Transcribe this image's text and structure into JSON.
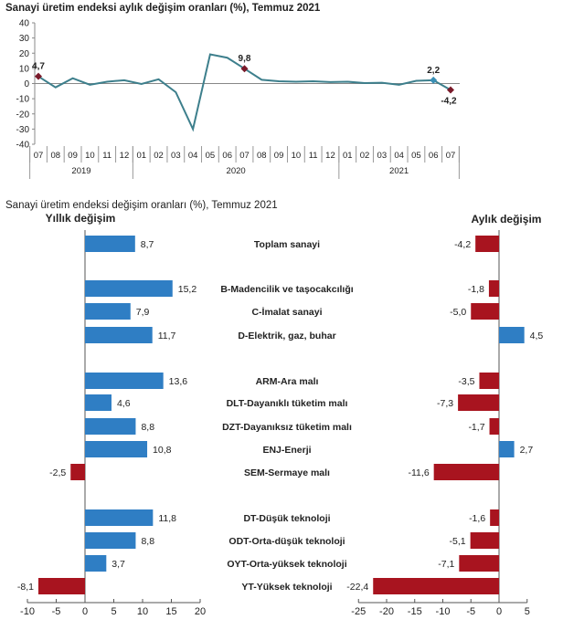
{
  "colors": {
    "line": "#3d7f8c",
    "blue": "#2f7ec4",
    "red": "#a8141f",
    "marker_red": "#7a1a2a",
    "marker_blue": "#3a8fb5"
  },
  "chart_data": [
    {
      "type": "line",
      "title": "Sanayi üretim endeksi aylık değişim oranları (%), Temmuz 2021",
      "x": [
        "07",
        "08",
        "09",
        "10",
        "11",
        "12",
        "01",
        "02",
        "03",
        "04",
        "05",
        "06",
        "07",
        "08",
        "09",
        "10",
        "11",
        "12",
        "01",
        "02",
        "03",
        "04",
        "05",
        "06",
        "07"
      ],
      "years": [
        {
          "label": "2019",
          "from": 0,
          "to": 5
        },
        {
          "label": "2020",
          "from": 6,
          "to": 17
        },
        {
          "label": "2021",
          "from": 18,
          "to": 24
        }
      ],
      "values": [
        4.7,
        -2.5,
        3.5,
        -0.8,
        1.2,
        2.2,
        -0.3,
        2.8,
        -5.7,
        -30.0,
        19.2,
        17.0,
        9.8,
        2.5,
        1.5,
        1.2,
        1.5,
        1.0,
        1.2,
        0.3,
        0.5,
        -0.8,
        1.8,
        2.2,
        -4.2
      ],
      "labeled_points": [
        {
          "index": 0,
          "label": "4,7",
          "color": "red"
        },
        {
          "index": 12,
          "label": "9,8",
          "color": "red"
        },
        {
          "index": 23,
          "label": "2,2",
          "color": "blue"
        },
        {
          "index": 24,
          "label": "-4,2",
          "color": "red"
        }
      ],
      "ylim": [
        -40,
        40
      ],
      "yticks": [
        "40",
        "30",
        "20",
        "10",
        "0",
        "-10",
        "-20",
        "-30",
        "-40"
      ],
      "grid": false
    },
    {
      "type": "bar",
      "orientation": "horizontal",
      "title": "Sanayi üretim endeksi değişim oranları (%), Temmuz 2021",
      "categories": [
        "Toplam sanayi",
        "B-Madencilik ve taşocakcılığı",
        "C-İmalat sanayi",
        "D-Elektrik, gaz, buhar",
        "ARM-Ara malı",
        "DLT-Dayanıklı tüketim malı",
        "DZT-Dayanıksız tüketim malı",
        "ENJ-Enerji",
        "SEM-Sermaye malı",
        "DT-Düşük teknoloji",
        "ODT-Orta-düşük teknoloji",
        "OYT-Orta-yüksek teknoloji",
        "YT-Yüksek teknoloji"
      ],
      "series": [
        {
          "name": "Yıllık değişim",
          "values": [
            8.7,
            15.2,
            7.9,
            11.7,
            13.6,
            4.6,
            8.8,
            10.8,
            -2.5,
            11.8,
            8.8,
            3.7,
            -8.1
          ],
          "labels": [
            "8,7",
            "15,2",
            "7,9",
            "11,7",
            "13,6",
            "4,6",
            "8,8",
            "10,8",
            "-2,5",
            "11,8",
            "8,8",
            "3,7",
            "-8,1"
          ],
          "xlim": [
            -10,
            20
          ],
          "xticks": [
            "-10",
            "-5",
            "0",
            "5",
            "10",
            "15",
            "20"
          ]
        },
        {
          "name": "Aylık değişim",
          "values": [
            -4.2,
            -1.8,
            -5.0,
            4.5,
            -3.5,
            -7.3,
            -1.7,
            2.7,
            -11.6,
            -1.6,
            -5.1,
            -7.1,
            -22.4
          ],
          "labels": [
            "-4,2",
            "-1,8",
            "-5,0",
            "4,5",
            "-3,5",
            "-7,3",
            "-1,7",
            "2,7",
            "-11,6",
            "-1,6",
            "-5,1",
            "-7,1",
            "-22,4"
          ],
          "xlim": [
            -25,
            5
          ],
          "xticks": [
            "-25",
            "-20",
            "-15",
            "-10",
            "-5",
            "0",
            "5"
          ]
        }
      ],
      "grid": false
    }
  ]
}
